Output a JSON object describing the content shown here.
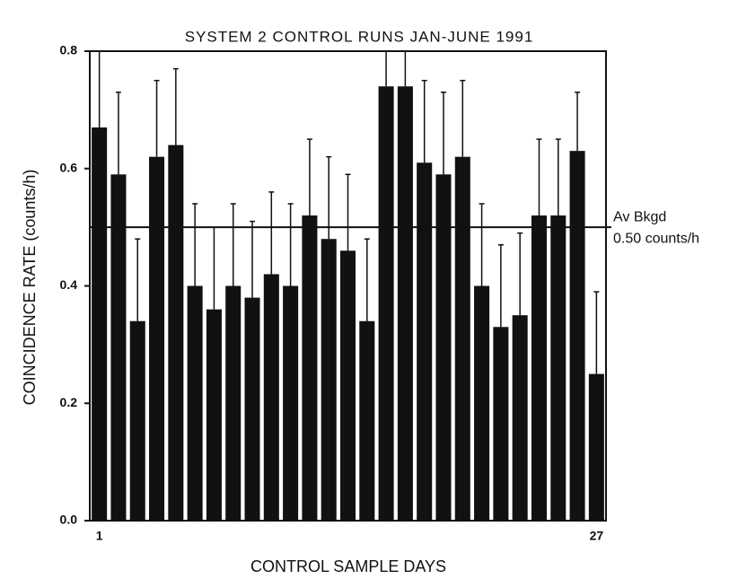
{
  "chart_data": {
    "type": "bar",
    "title": "SYSTEM 2 CONTROL RUNS JAN-JUNE 1991",
    "x_label": "CONTROL SAMPLE DAYS",
    "y_label": "COINCIDENCE RATE (counts/h)",
    "categories": [
      "1",
      null,
      null,
      null,
      null,
      null,
      null,
      null,
      null,
      null,
      null,
      null,
      null,
      null,
      null,
      null,
      null,
      null,
      null,
      null,
      null,
      null,
      null,
      null,
      null,
      null,
      "27"
    ],
    "values": [
      0.67,
      0.59,
      0.34,
      0.62,
      0.64,
      0.4,
      0.36,
      0.4,
      0.38,
      0.42,
      0.4,
      0.52,
      0.48,
      0.46,
      0.34,
      0.74,
      0.74,
      0.61,
      0.59,
      0.62,
      0.4,
      0.33,
      0.35,
      0.52,
      0.52,
      0.63,
      0.25
    ],
    "errors": [
      0.14,
      0.14,
      0.14,
      0.13,
      0.13,
      0.14,
      0.14,
      0.14,
      0.13,
      0.14,
      0.14,
      0.13,
      0.14,
      0.13,
      0.14,
      0.14,
      0.14,
      0.14,
      0.14,
      0.13,
      0.14,
      0.14,
      0.14,
      0.13,
      0.13,
      0.1,
      0.14
    ],
    "color": "#111111",
    "ylim": [
      0,
      0.8
    ],
    "yticks": [
      {
        "value": 0,
        "label": "0.0"
      },
      0.2,
      0.4,
      0.6,
      0.8
    ],
    "reference_line": {
      "value": 0.5,
      "label": "Av Bkgd",
      "sublabel": "0.50 counts/h"
    }
  }
}
